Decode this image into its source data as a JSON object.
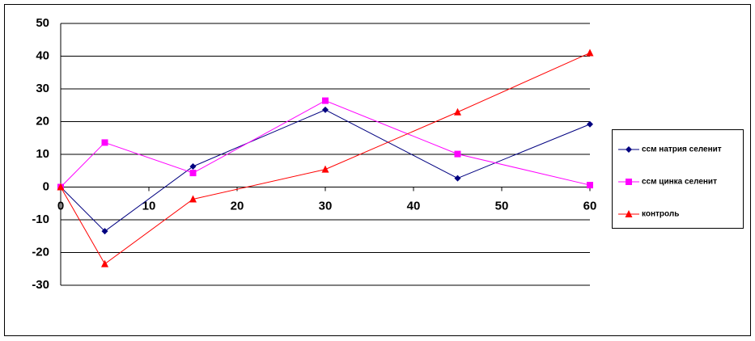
{
  "chart_data": {
    "type": "line",
    "x": [
      0,
      5,
      15,
      30,
      45,
      60
    ],
    "series": [
      {
        "name": "ссм натрия селенит",
        "color": "#000080",
        "marker": "diamond",
        "values": [
          0,
          -13.5,
          6.3,
          23.6,
          2.7,
          19.2
        ]
      },
      {
        "name": "ссм цинка селенит",
        "color": "#ff00ff",
        "marker": "square",
        "values": [
          0,
          13.6,
          4.3,
          26.4,
          10.1,
          0.6
        ]
      },
      {
        "name": "контроль",
        "color": "#ff0000",
        "marker": "triangle",
        "values": [
          0,
          -23.5,
          -3.7,
          5.4,
          22.9,
          41
        ]
      }
    ],
    "xlim": [
      0,
      60
    ],
    "xticks": [
      0,
      10,
      20,
      30,
      40,
      50,
      60
    ],
    "ylim": [
      -30,
      50
    ],
    "yticks": [
      -30,
      -20,
      -10,
      0,
      10,
      20,
      30,
      40,
      50
    ],
    "grid": true,
    "legend": "right"
  }
}
